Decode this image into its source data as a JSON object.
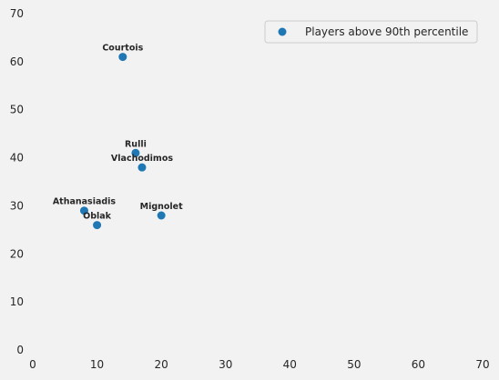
{
  "chart_data": {
    "type": "scatter",
    "title": "",
    "xlabel": "",
    "ylabel": "",
    "xlim": [
      0,
      70
    ],
    "ylim": [
      0,
      70
    ],
    "xticks": [
      0,
      10,
      20,
      30,
      40,
      50,
      60,
      70
    ],
    "yticks": [
      0,
      10,
      20,
      30,
      40,
      50,
      60,
      70
    ],
    "grid": false,
    "legend_position": "top-right",
    "series": [
      {
        "name": "Players above 90th percentile",
        "color": "#1f77b4",
        "points": [
          {
            "label": "Courtois",
            "x": 14,
            "y": 61
          },
          {
            "label": "Rulli",
            "x": 16,
            "y": 41
          },
          {
            "label": "Vlachodimos",
            "x": 17,
            "y": 38
          },
          {
            "label": "Athanasiadis",
            "x": 8,
            "y": 29
          },
          {
            "label": "Oblak",
            "x": 10,
            "y": 26
          },
          {
            "label": "Mignolet",
            "x": 20,
            "y": 28
          }
        ]
      }
    ]
  }
}
